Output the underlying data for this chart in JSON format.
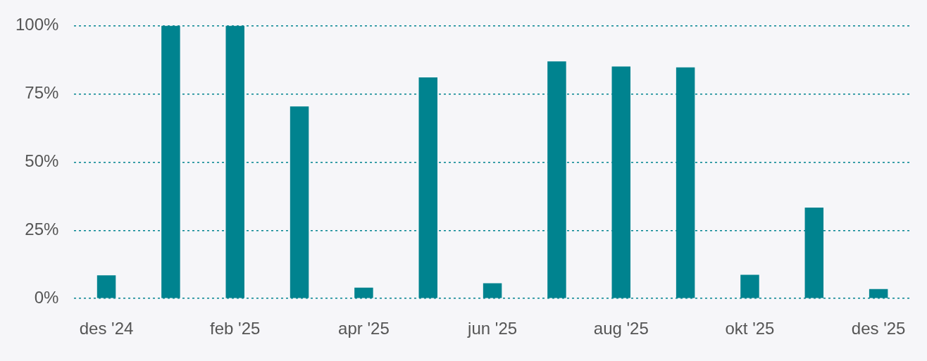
{
  "chart_data": {
    "type": "bar",
    "categories": [
      "des '24",
      null,
      "feb '25",
      null,
      "apr '25",
      null,
      "jun '25",
      null,
      "aug '25",
      null,
      "okt '25",
      null,
      "des '25"
    ],
    "values": [
      8.5,
      100,
      100,
      70.4,
      4,
      81,
      5.6,
      86.9,
      85,
      84.7,
      8.7,
      33.3,
      3.5
    ],
    "color": "#00838f",
    "ylim": [
      0,
      100
    ],
    "yticks": [
      {
        "value": 0,
        "label": "0%"
      },
      {
        "value": 25,
        "label": "25%"
      },
      {
        "value": 50,
        "label": "50%"
      },
      {
        "value": 75,
        "label": "75%"
      },
      {
        "value": 100,
        "label": "100%"
      }
    ],
    "grid": "y"
  }
}
